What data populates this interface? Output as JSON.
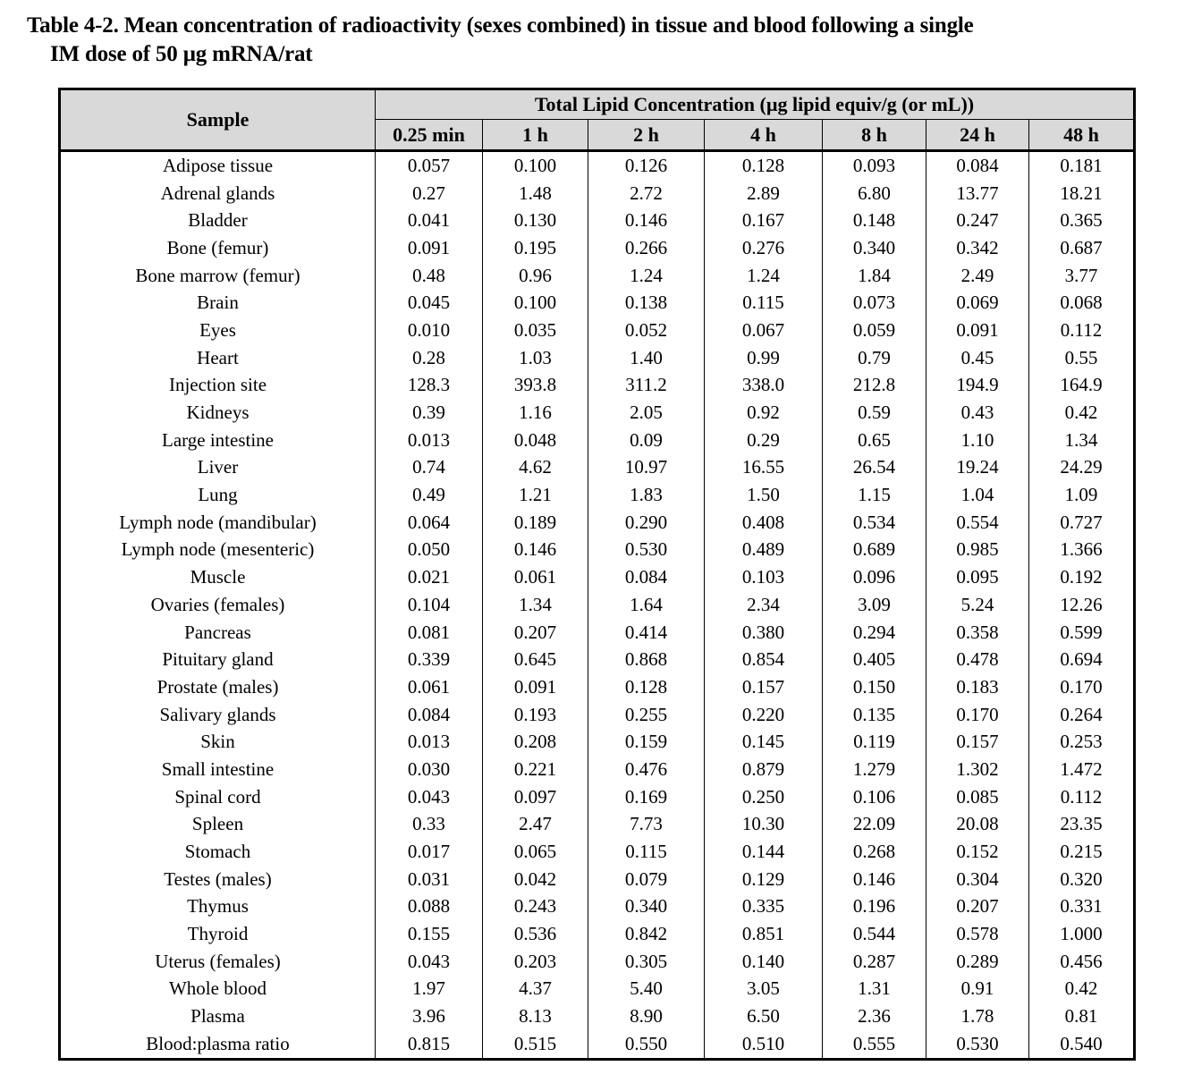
{
  "title": {
    "line1": "Table 4-2. Mean concentration of radioactivity (sexes combined) in tissue and blood following a single",
    "line2": "IM dose of 50 µg mRNA/rat"
  },
  "table": {
    "sample_header": "Sample",
    "group_header": "Total Lipid Concentration (µg lipid equiv/g (or mL))",
    "time_headers": [
      "0.25 min",
      "1 h",
      "2 h",
      "4 h",
      "8 h",
      "24 h",
      "48 h"
    ],
    "rows": [
      {
        "sample": "Adipose tissue",
        "values": [
          "0.057",
          "0.100",
          "0.126",
          "0.128",
          "0.093",
          "0.084",
          "0.181"
        ]
      },
      {
        "sample": "Adrenal glands",
        "values": [
          "0.27",
          "1.48",
          "2.72",
          "2.89",
          "6.80",
          "13.77",
          "18.21"
        ]
      },
      {
        "sample": "Bladder",
        "values": [
          "0.041",
          "0.130",
          "0.146",
          "0.167",
          "0.148",
          "0.247",
          "0.365"
        ]
      },
      {
        "sample": "Bone (femur)",
        "values": [
          "0.091",
          "0.195",
          "0.266",
          "0.276",
          "0.340",
          "0.342",
          "0.687"
        ]
      },
      {
        "sample": "Bone marrow (femur)",
        "values": [
          "0.48",
          "0.96",
          "1.24",
          "1.24",
          "1.84",
          "2.49",
          "3.77"
        ]
      },
      {
        "sample": "Brain",
        "values": [
          "0.045",
          "0.100",
          "0.138",
          "0.115",
          "0.073",
          "0.069",
          "0.068"
        ]
      },
      {
        "sample": "Eyes",
        "values": [
          "0.010",
          "0.035",
          "0.052",
          "0.067",
          "0.059",
          "0.091",
          "0.112"
        ]
      },
      {
        "sample": "Heart",
        "values": [
          "0.28",
          "1.03",
          "1.40",
          "0.99",
          "0.79",
          "0.45",
          "0.55"
        ]
      },
      {
        "sample": "Injection site",
        "values": [
          "128.3",
          "393.8",
          "311.2",
          "338.0",
          "212.8",
          "194.9",
          "164.9"
        ]
      },
      {
        "sample": "Kidneys",
        "values": [
          "0.39",
          "1.16",
          "2.05",
          "0.92",
          "0.59",
          "0.43",
          "0.42"
        ]
      },
      {
        "sample": "Large intestine",
        "values": [
          "0.013",
          "0.048",
          "0.09",
          "0.29",
          "0.65",
          "1.10",
          "1.34"
        ]
      },
      {
        "sample": "Liver",
        "values": [
          "0.74",
          "4.62",
          "10.97",
          "16.55",
          "26.54",
          "19.24",
          "24.29"
        ]
      },
      {
        "sample": "Lung",
        "values": [
          "0.49",
          "1.21",
          "1.83",
          "1.50",
          "1.15",
          "1.04",
          "1.09"
        ]
      },
      {
        "sample": "Lymph node (mandibular)",
        "values": [
          "0.064",
          "0.189",
          "0.290",
          "0.408",
          "0.534",
          "0.554",
          "0.727"
        ]
      },
      {
        "sample": "Lymph node (mesenteric)",
        "values": [
          "0.050",
          "0.146",
          "0.530",
          "0.489",
          "0.689",
          "0.985",
          "1.366"
        ]
      },
      {
        "sample": "Muscle",
        "values": [
          "0.021",
          "0.061",
          "0.084",
          "0.103",
          "0.096",
          "0.095",
          "0.192"
        ]
      },
      {
        "sample": "Ovaries (females)",
        "values": [
          "0.104",
          "1.34",
          "1.64",
          "2.34",
          "3.09",
          "5.24",
          "12.26"
        ]
      },
      {
        "sample": "Pancreas",
        "values": [
          "0.081",
          "0.207",
          "0.414",
          "0.380",
          "0.294",
          "0.358",
          "0.599"
        ]
      },
      {
        "sample": "Pituitary gland",
        "values": [
          "0.339",
          "0.645",
          "0.868",
          "0.854",
          "0.405",
          "0.478",
          "0.694"
        ]
      },
      {
        "sample": "Prostate (males)",
        "values": [
          "0.061",
          "0.091",
          "0.128",
          "0.157",
          "0.150",
          "0.183",
          "0.170"
        ]
      },
      {
        "sample": "Salivary glands",
        "values": [
          "0.084",
          "0.193",
          "0.255",
          "0.220",
          "0.135",
          "0.170",
          "0.264"
        ]
      },
      {
        "sample": "Skin",
        "values": [
          "0.013",
          "0.208",
          "0.159",
          "0.145",
          "0.119",
          "0.157",
          "0.253"
        ]
      },
      {
        "sample": "Small intestine",
        "values": [
          "0.030",
          "0.221",
          "0.476",
          "0.879",
          "1.279",
          "1.302",
          "1.472"
        ]
      },
      {
        "sample": "Spinal cord",
        "values": [
          "0.043",
          "0.097",
          "0.169",
          "0.250",
          "0.106",
          "0.085",
          "0.112"
        ]
      },
      {
        "sample": "Spleen",
        "values": [
          "0.33",
          "2.47",
          "7.73",
          "10.30",
          "22.09",
          "20.08",
          "23.35"
        ]
      },
      {
        "sample": "Stomach",
        "values": [
          "0.017",
          "0.065",
          "0.115",
          "0.144",
          "0.268",
          "0.152",
          "0.215"
        ]
      },
      {
        "sample": "Testes (males)",
        "values": [
          "0.031",
          "0.042",
          "0.079",
          "0.129",
          "0.146",
          "0.304",
          "0.320"
        ]
      },
      {
        "sample": "Thymus",
        "values": [
          "0.088",
          "0.243",
          "0.340",
          "0.335",
          "0.196",
          "0.207",
          "0.331"
        ]
      },
      {
        "sample": "Thyroid",
        "values": [
          "0.155",
          "0.536",
          "0.842",
          "0.851",
          "0.544",
          "0.578",
          "1.000"
        ]
      },
      {
        "sample": "Uterus (females)",
        "values": [
          "0.043",
          "0.203",
          "0.305",
          "0.140",
          "0.287",
          "0.289",
          "0.456"
        ]
      },
      {
        "sample": "Whole blood",
        "values": [
          "1.97",
          "4.37",
          "5.40",
          "3.05",
          "1.31",
          "0.91",
          "0.42"
        ]
      },
      {
        "sample": "Plasma",
        "values": [
          "3.96",
          "8.13",
          "8.90",
          "6.50",
          "2.36",
          "1.78",
          "0.81"
        ]
      },
      {
        "sample": "Blood:plasma ratio",
        "values": [
          "0.815",
          "0.515",
          "0.550",
          "0.510",
          "0.555",
          "0.530",
          "0.540"
        ]
      }
    ]
  },
  "colors": {
    "header_bg": "#d9d9d9",
    "border": "#000000",
    "text": "#000000",
    "page_bg": "#ffffff"
  }
}
